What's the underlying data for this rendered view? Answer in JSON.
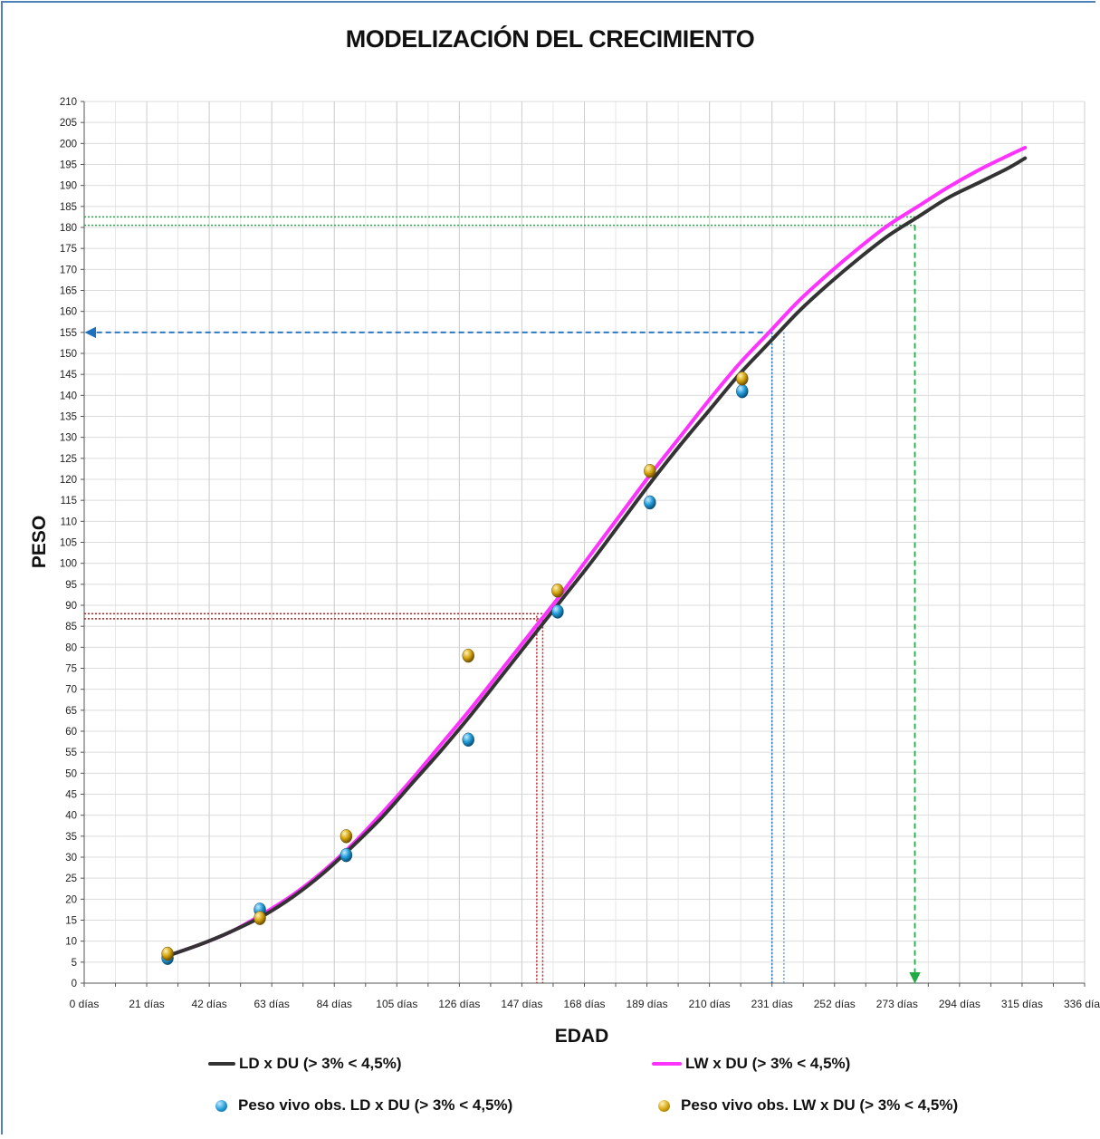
{
  "chart_data": {
    "type": "line",
    "title": "MODELIZACIÓN DEL CRECIMIENTO",
    "xlabel": "EDAD",
    "ylabel": "PESO",
    "xlim": [
      0,
      336
    ],
    "ylim": [
      0,
      210
    ],
    "x_ticks": [
      0,
      21,
      42,
      63,
      84,
      105,
      126,
      147,
      168,
      189,
      210,
      231,
      252,
      273,
      294,
      315,
      336
    ],
    "x_tick_suffix": " días",
    "y_tick_step": 5,
    "grid": true,
    "legend_position": "bottom",
    "series": [
      {
        "name": "LD x DU (> 3% < 4,5%)",
        "kind": "line",
        "color": "#333333",
        "x": [
          28,
          40,
          50,
          60,
          70,
          80,
          90,
          100,
          110,
          120,
          130,
          140,
          150,
          160,
          170,
          180,
          190,
          200,
          210,
          220,
          230,
          240,
          250,
          260,
          270,
          280,
          290,
          300,
          310,
          316
        ],
        "y": [
          6.5,
          9.5,
          12.5,
          16.0,
          20.5,
          26.0,
          32.5,
          39.5,
          47.5,
          55.5,
          64.0,
          73.0,
          82.0,
          91.0,
          100.0,
          109.5,
          119.0,
          128.0,
          136.5,
          145.0,
          152.5,
          160.0,
          166.5,
          172.5,
          178.0,
          182.5,
          187.0,
          190.5,
          194.0,
          196.5
        ]
      },
      {
        "name": "LW x DU (> 3% < 4,5%)",
        "kind": "line",
        "color": "#ff33ff",
        "x": [
          28,
          40,
          50,
          60,
          70,
          80,
          90,
          100,
          110,
          120,
          130,
          140,
          150,
          160,
          170,
          180,
          190,
          200,
          210,
          220,
          230,
          240,
          250,
          260,
          270,
          280,
          290,
          300,
          310,
          316
        ],
        "y": [
          6.5,
          9.5,
          12.5,
          16.5,
          21.0,
          26.5,
          33.0,
          40.5,
          48.5,
          57.0,
          65.5,
          74.5,
          83.5,
          92.5,
          102.0,
          111.5,
          121.0,
          130.0,
          139.0,
          147.5,
          155.0,
          162.5,
          169.0,
          175.0,
          180.5,
          185.0,
          189.5,
          193.5,
          197.0,
          199.0
        ]
      },
      {
        "name": "Peso vivo obs. LD x DU (> 3% < 4,5%)",
        "kind": "scatter",
        "color": "#1f9ad6",
        "x": [
          28,
          59,
          88,
          129,
          159,
          190,
          221
        ],
        "y": [
          6.0,
          17.5,
          30.5,
          58.0,
          88.5,
          114.5,
          141.0
        ]
      },
      {
        "name": "Peso vivo obs. LW x DU (> 3% < 4,5%)",
        "kind": "scatter",
        "color": "#d4a20c",
        "x": [
          28,
          59,
          88,
          129,
          159,
          190,
          221
        ],
        "y": [
          7.0,
          15.5,
          35.0,
          78.0,
          93.5,
          122.0,
          144.0
        ]
      }
    ],
    "guides": [
      {
        "name": "green-dotted-h-upper",
        "color": "#22aa44",
        "kind": "h",
        "y": 182.5,
        "x_to": 279
      },
      {
        "name": "green-dotted-h-lower",
        "color": "#22aa44",
        "kind": "h",
        "y": 180.5,
        "x_to": 279
      },
      {
        "name": "green-dashed-arrow-down",
        "color": "#22aa44",
        "kind": "arrow-down",
        "x": 279,
        "y_from": 180.5
      },
      {
        "name": "blue-dashed-arrow-left",
        "color": "#2070c0",
        "kind": "arrow-left",
        "y": 155,
        "x_from": 231
      },
      {
        "name": "blue-dotted-v-1",
        "color": "#2070c0",
        "kind": "v",
        "x": 231,
        "y_to": 155
      },
      {
        "name": "blue-dotted-v-2",
        "color": "#6aa0d8",
        "kind": "v",
        "x": 235,
        "y_to": 155
      },
      {
        "name": "red-dotted-h-1",
        "color": "#c02020",
        "kind": "h",
        "y": 88.0,
        "x_to": 154
      },
      {
        "name": "red-dotted-h-2",
        "color": "#c02020",
        "kind": "h",
        "y": 86.8,
        "x_to": 154
      },
      {
        "name": "red-dotted-v-1",
        "color": "#c02020",
        "kind": "v",
        "x": 152,
        "y_to": 87.5
      },
      {
        "name": "red-dotted-v-2",
        "color": "#c02020",
        "kind": "v",
        "x": 154,
        "y_to": 87.5
      }
    ]
  }
}
